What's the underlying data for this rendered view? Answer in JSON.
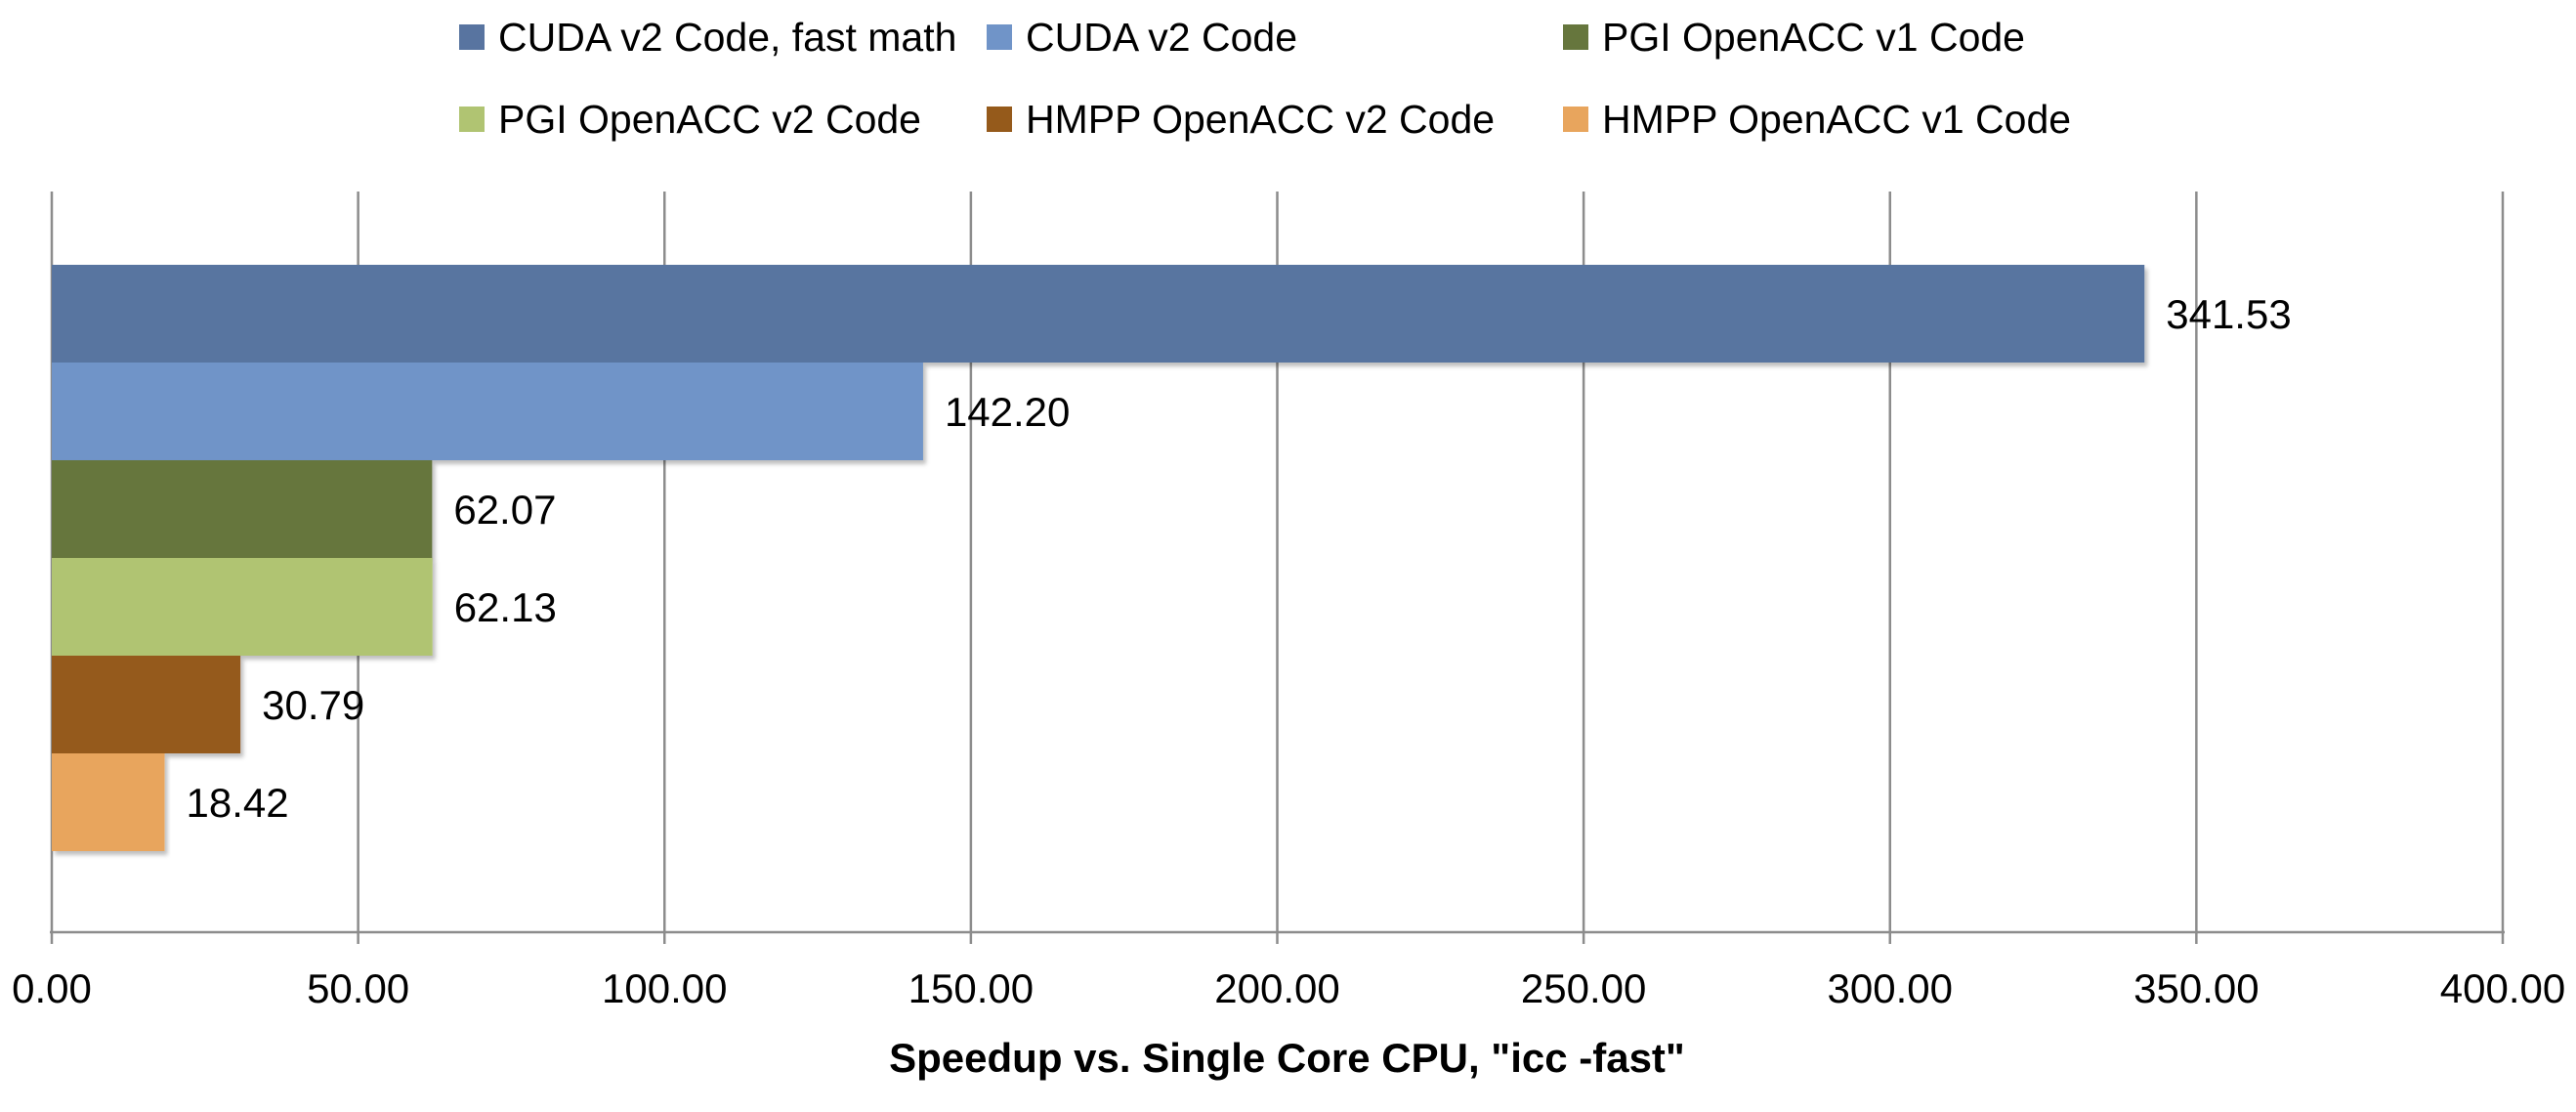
{
  "chart_data": {
    "type": "bar",
    "orientation": "horizontal",
    "title": "",
    "xlabel": "Speedup vs. Single Core CPU, \"icc -fast\"",
    "ylabel": "",
    "xlim": [
      0,
      400
    ],
    "x_ticks": [
      "0.00",
      "50.00",
      "100.00",
      "150.00",
      "200.00",
      "250.00",
      "300.00",
      "350.00",
      "400.00"
    ],
    "x_tick_values": [
      0,
      50,
      100,
      150,
      200,
      250,
      300,
      350,
      400
    ],
    "grid": "vertical",
    "legend_position": "top",
    "series": [
      {
        "name": "CUDA v2 Code, fast math",
        "value": 341.53,
        "label": "341.53",
        "color": "#5874a0"
      },
      {
        "name": "CUDA v2 Code",
        "value": 142.2,
        "label": "142.20",
        "color": "#7094c8"
      },
      {
        "name": "PGI OpenACC v1 Code",
        "value": 62.07,
        "label": "62.07",
        "color": "#66763d"
      },
      {
        "name": "PGI OpenACC v2 Code",
        "value": 62.13,
        "label": "62.13",
        "color": "#b0c472"
      },
      {
        "name": "HMPP OpenACC v2 Code",
        "value": 30.79,
        "label": "30.79",
        "color": "#955a1b"
      },
      {
        "name": "HMPP OpenACC v1 Code",
        "value": 18.42,
        "label": "18.42",
        "color": "#e8a55d"
      }
    ]
  }
}
